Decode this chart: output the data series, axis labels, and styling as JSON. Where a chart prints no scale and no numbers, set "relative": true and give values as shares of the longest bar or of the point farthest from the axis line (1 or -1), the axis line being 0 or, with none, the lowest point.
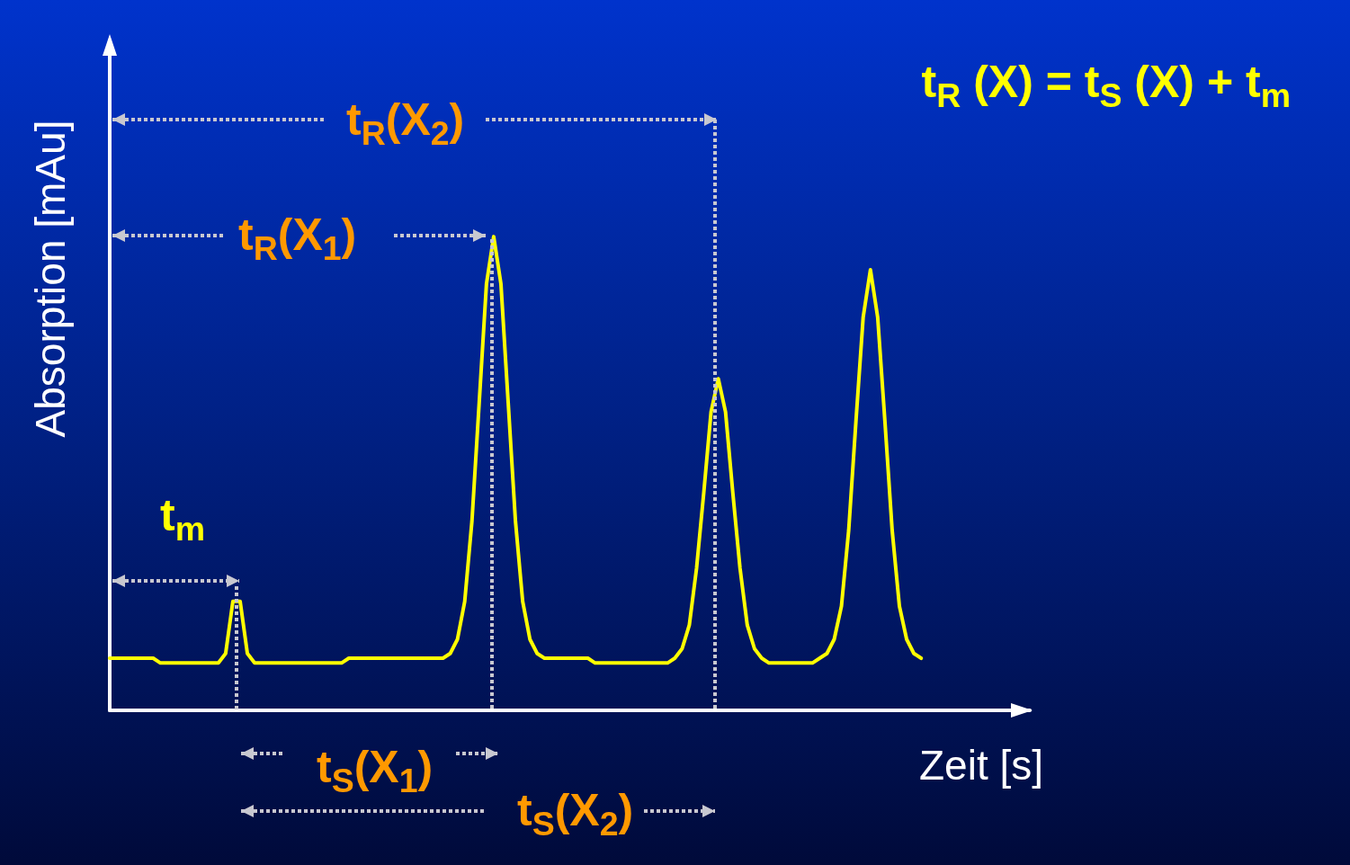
{
  "chart_data": {
    "type": "line",
    "relative": true,
    "xlabel": "Zeit [s]",
    "ylabel": "Absorption [mAu]",
    "categories": [
      null,
      null,
      null,
      null,
      null,
      null,
      null,
      null,
      null,
      null,
      null,
      null,
      null,
      null,
      null,
      null,
      null,
      null,
      null,
      null,
      null,
      null,
      null,
      null,
      null,
      null,
      null,
      null,
      null,
      null,
      null,
      null,
      null,
      null,
      null,
      null,
      null,
      null,
      null,
      null,
      null,
      null,
      null,
      null,
      null,
      null,
      null,
      null,
      null,
      null,
      null,
      null,
      null,
      null,
      null,
      null,
      null,
      null,
      null,
      null,
      null,
      null,
      null,
      null,
      null,
      null,
      null,
      null,
      null,
      null,
      null,
      null,
      null,
      null,
      null,
      null,
      null,
      null,
      null,
      null,
      null,
      null,
      null,
      null,
      null,
      null,
      null,
      null,
      null,
      null,
      null,
      null,
      null,
      null,
      null,
      null,
      null,
      null,
      null,
      null,
      null,
      null,
      null,
      null,
      null,
      null,
      null,
      null,
      null,
      null,
      null,
      null,
      null,
      null,
      null,
      null,
      null,
      null,
      null,
      null,
      null,
      null,
      null,
      null,
      null,
      null,
      null,
      null
    ],
    "series": [
      {
        "color": "#ffff00",
        "values": [
          0.11,
          0.11,
          0.11,
          0.11,
          0.11,
          0.11,
          0.11,
          0.1,
          0.1,
          0.1,
          0.1,
          0.1,
          0.1,
          0.1,
          0.1,
          0.1,
          0.12,
          0.23,
          0.23,
          0.12,
          0.1,
          0.1,
          0.1,
          0.1,
          0.1,
          0.1,
          0.1,
          0.1,
          0.1,
          0.1,
          0.1,
          0.1,
          0.1,
          0.11,
          0.11,
          0.11,
          0.11,
          0.11,
          0.11,
          0.11,
          0.11,
          0.11,
          0.11,
          0.11,
          0.11,
          0.11,
          0.11,
          0.12,
          0.15,
          0.23,
          0.4,
          0.65,
          0.9,
          1.0,
          0.9,
          0.65,
          0.4,
          0.23,
          0.15,
          0.12,
          0.11,
          0.11,
          0.11,
          0.11,
          0.11,
          0.11,
          0.11,
          0.1,
          0.1,
          0.1,
          0.1,
          0.1,
          0.1,
          0.1,
          0.1,
          0.1,
          0.1,
          0.1,
          0.11,
          0.13,
          0.18,
          0.3,
          0.46,
          0.63,
          0.7,
          0.63,
          0.46,
          0.3,
          0.18,
          0.13,
          0.11,
          0.1,
          0.1,
          0.1,
          0.1,
          0.1,
          0.1,
          0.1,
          0.11,
          0.12,
          0.15,
          0.22,
          0.38,
          0.61,
          0.83,
          0.93,
          0.83,
          0.61,
          0.38,
          0.22,
          0.15,
          0.12,
          0.11,
          null,
          null,
          null,
          null,
          null,
          null,
          null,
          null,
          null,
          null,
          null,
          null,
          null,
          null,
          null
        ]
      }
    ],
    "annotations": [
      "t$_{R}$ (X) = t$_{S}$ (X) + t$_{m}$",
      "t$_{R}$(X$_{2}$)",
      "t$_{R}$(X$_{1}$)",
      "t$_{m}$",
      "t$_{S}$(X$_{1}$)",
      "t$_{S}$(X$_{2}$)"
    ],
    "grid": false,
    "marker": "none",
    "line_style": "solid"
  }
}
